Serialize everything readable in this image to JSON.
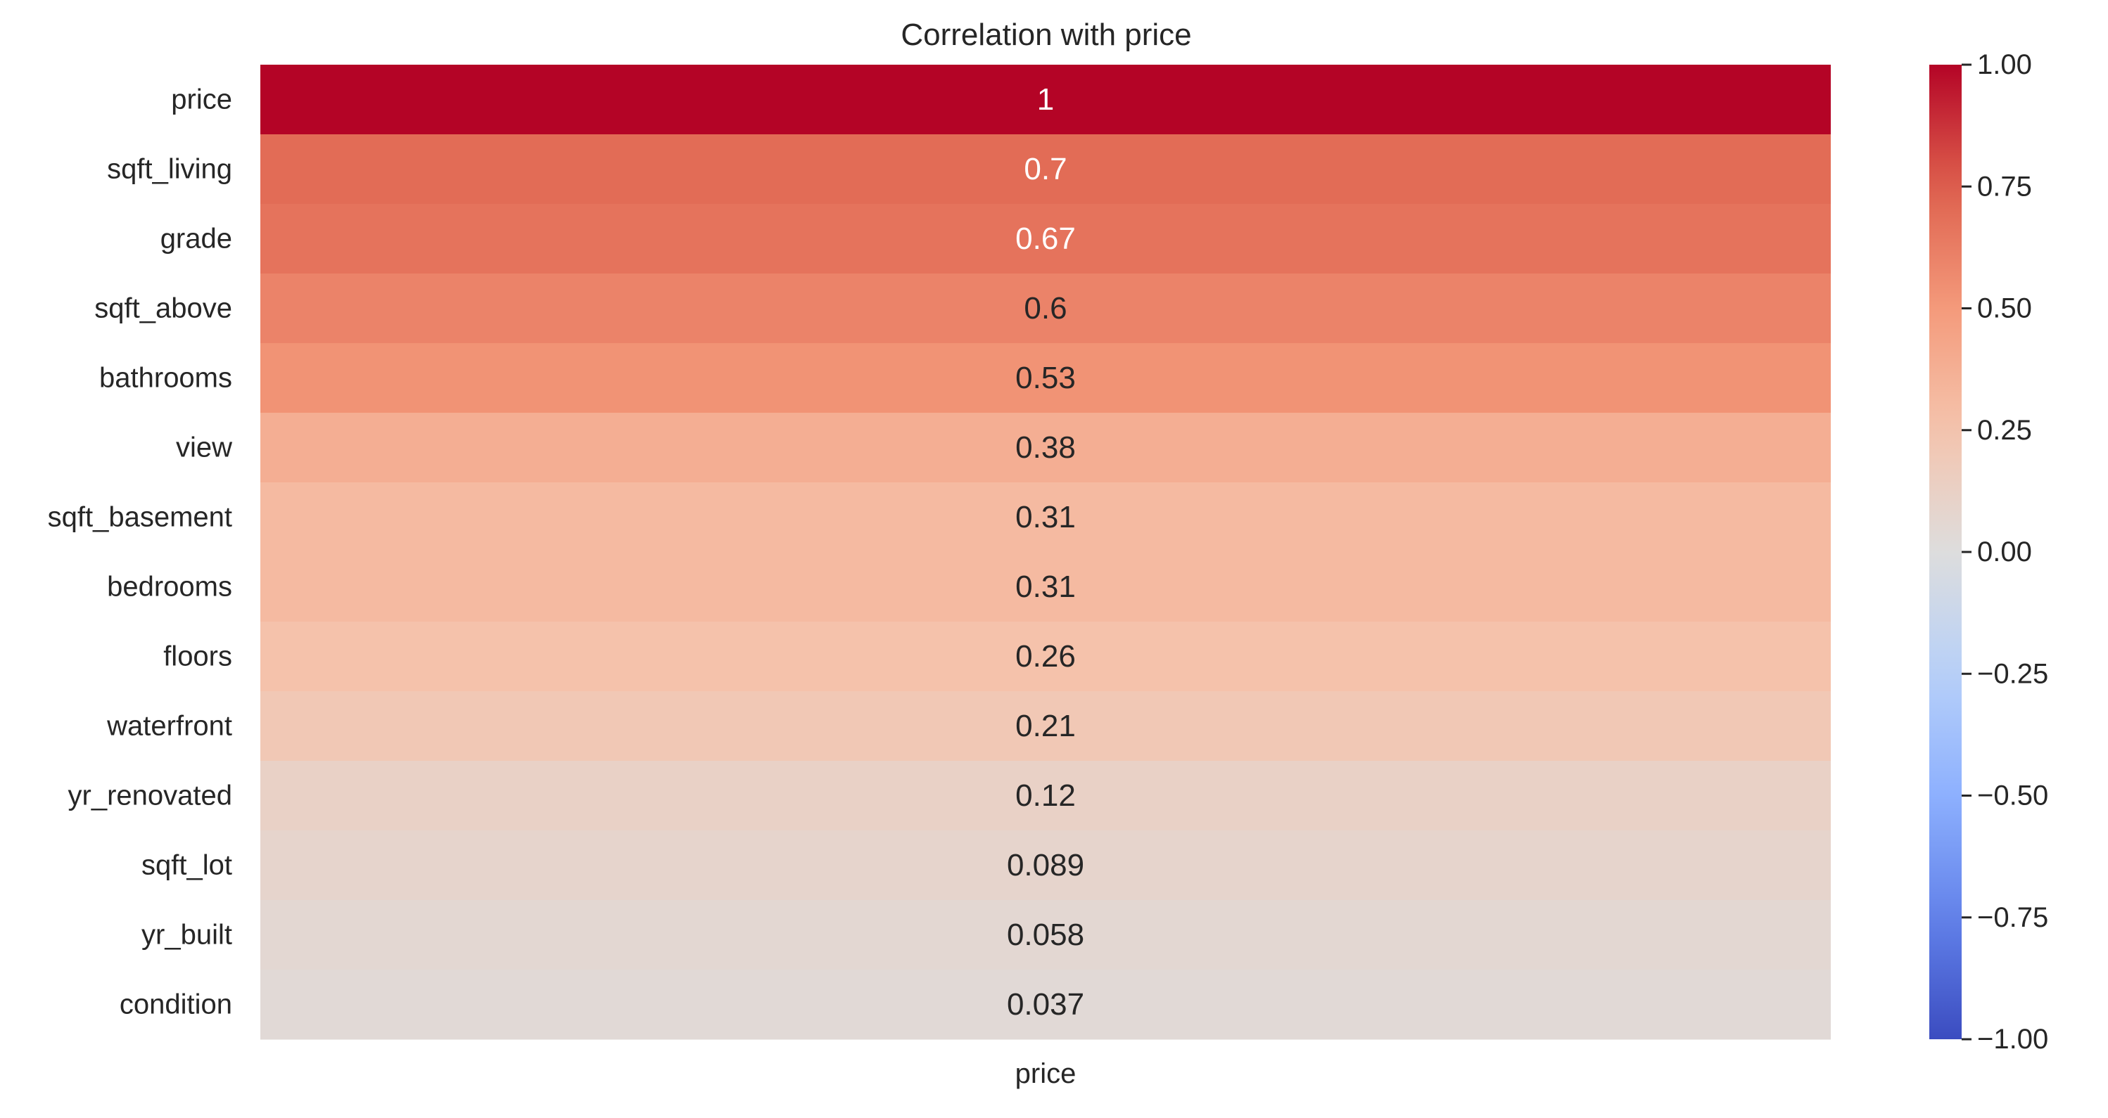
{
  "chart_data": {
    "type": "heatmap",
    "title": "Correlation with price",
    "xlabel": "",
    "ylabel": "",
    "columns": [
      "price"
    ],
    "rows": [
      {
        "label": "price",
        "value": 1.0,
        "annotation": "1"
      },
      {
        "label": "sqft_living",
        "value": 0.7,
        "annotation": "0.7"
      },
      {
        "label": "grade",
        "value": 0.67,
        "annotation": "0.67"
      },
      {
        "label": "sqft_above",
        "value": 0.6,
        "annotation": "0.6"
      },
      {
        "label": "bathrooms",
        "value": 0.53,
        "annotation": "0.53"
      },
      {
        "label": "view",
        "value": 0.38,
        "annotation": "0.38"
      },
      {
        "label": "sqft_basement",
        "value": 0.31,
        "annotation": "0.31"
      },
      {
        "label": "bedrooms",
        "value": 0.31,
        "annotation": "0.31"
      },
      {
        "label": "floors",
        "value": 0.26,
        "annotation": "0.26"
      },
      {
        "label": "waterfront",
        "value": 0.21,
        "annotation": "0.21"
      },
      {
        "label": "yr_renovated",
        "value": 0.12,
        "annotation": "0.12"
      },
      {
        "label": "sqft_lot",
        "value": 0.089,
        "annotation": "0.089"
      },
      {
        "label": "yr_built",
        "value": 0.058,
        "annotation": "0.058"
      },
      {
        "label": "condition",
        "value": 0.037,
        "annotation": "0.037"
      }
    ],
    "colormap": "coolwarm",
    "vmin": -1.0,
    "vmax": 1.0,
    "colorbar": {
      "ticks": [
        1.0,
        0.75,
        0.5,
        0.25,
        0.0,
        -0.25,
        -0.5,
        -0.75,
        -1.0
      ],
      "tick_labels": [
        "1.00",
        "0.75",
        "0.50",
        "0.25",
        "0.00",
        "−0.25",
        "−0.50",
        "−0.75",
        "−1.00"
      ]
    },
    "grid": false
  },
  "colors": {
    "dark_text": "#262626",
    "light_text": "#ffffff",
    "background": "#ffffff"
  }
}
